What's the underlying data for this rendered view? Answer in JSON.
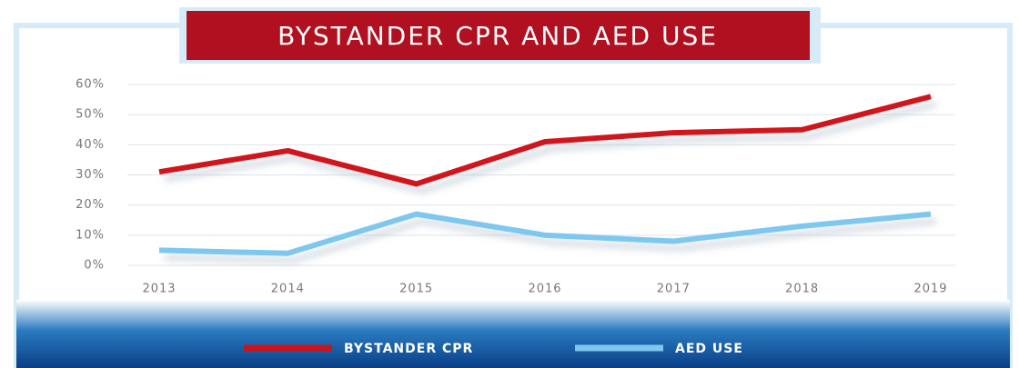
{
  "chart_data": {
    "type": "line",
    "title": "BYSTANDER CPR AND AED USE",
    "categories": [
      "2013",
      "2014",
      "2015",
      "2016",
      "2017",
      "2018",
      "2019"
    ],
    "series": [
      {
        "name": "BYSTANDER CPR",
        "color": "#d0121b",
        "values": [
          31,
          38,
          27,
          41,
          44,
          45,
          56
        ]
      },
      {
        "name": "AED USE",
        "color": "#7ec8ef",
        "values": [
          5,
          4,
          17,
          10,
          8,
          13,
          17
        ]
      }
    ],
    "ylim": [
      0,
      60
    ],
    "yticks": [
      {
        "value": 0,
        "label": "0%"
      },
      {
        "value": 10,
        "label": "10%"
      },
      {
        "value": 20,
        "label": "20%"
      },
      {
        "value": 30,
        "label": "30%"
      },
      {
        "value": 40,
        "label": "40%"
      },
      {
        "value": 50,
        "label": "50%"
      },
      {
        "value": 60,
        "label": "60%"
      }
    ],
    "grid": true,
    "legend": "bottom"
  }
}
